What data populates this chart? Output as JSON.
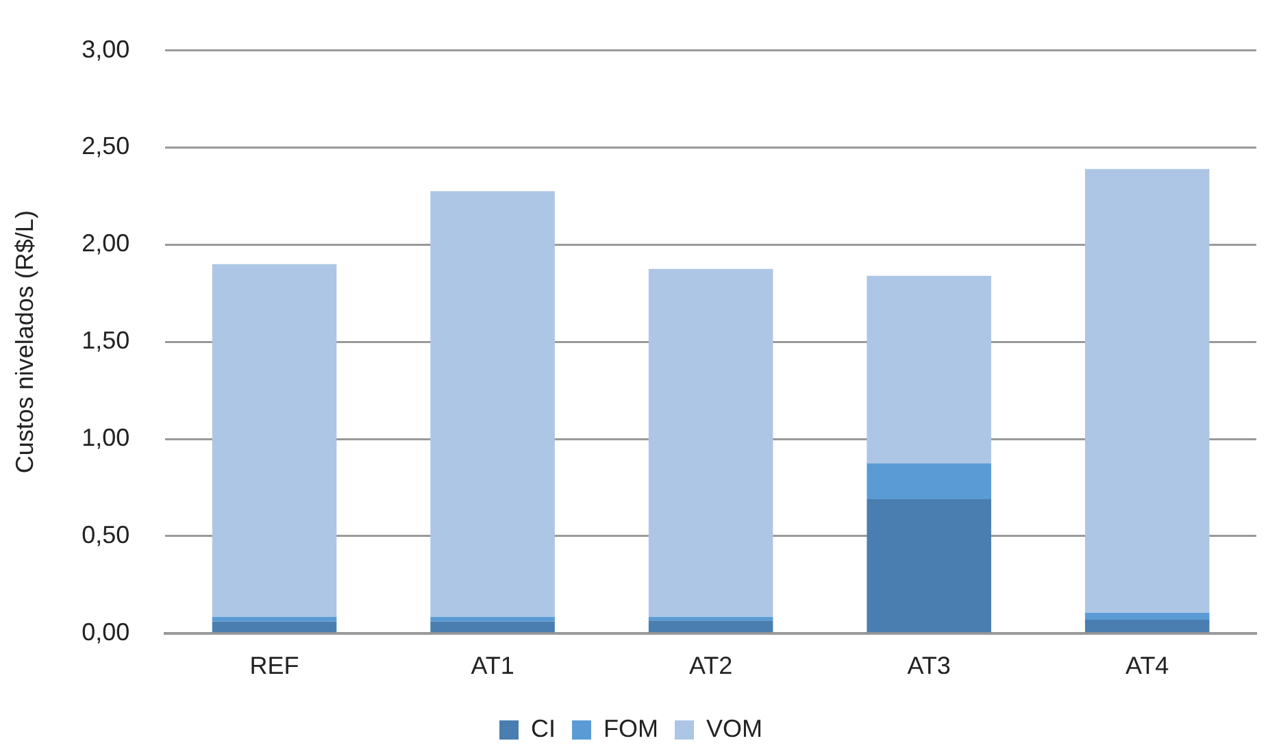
{
  "chart_data": {
    "type": "bar",
    "stacked": true,
    "ylabel": "Custos nivelados (R$/L)",
    "categories": [
      "REF",
      "AT1",
      "AT2",
      "AT3",
      "AT4"
    ],
    "series": [
      {
        "name": "CI",
        "color": "#4a7eb0",
        "values": [
          0.06,
          0.06,
          0.065,
          0.69,
          0.07
        ]
      },
      {
        "name": "FOM",
        "color": "#5b9bd5",
        "values": [
          0.025,
          0.025,
          0.02,
          0.185,
          0.035
        ]
      },
      {
        "name": "VOM",
        "color": "#adc6e5",
        "values": [
          1.815,
          2.19,
          1.79,
          0.965,
          2.285
        ]
      }
    ],
    "ylim": [
      0,
      3
    ],
    "yticks": [
      {
        "value": 0,
        "label": "0,00"
      },
      {
        "value": 0.5,
        "label": "0,50"
      },
      {
        "value": 1,
        "label": "1,00"
      },
      {
        "value": 1.5,
        "label": "1,50"
      },
      {
        "value": 2,
        "label": "2,00"
      },
      {
        "value": 2.5,
        "label": "2,50"
      },
      {
        "value": 3,
        "label": "3,00"
      }
    ],
    "grid": "y",
    "legend": "bottom"
  }
}
